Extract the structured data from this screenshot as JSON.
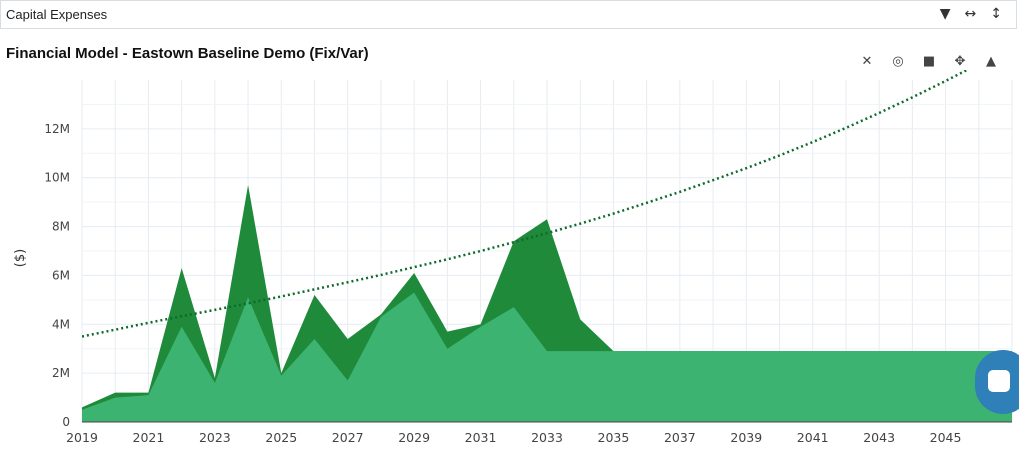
{
  "panel": {
    "title": "Capital Expenses",
    "controls": [
      {
        "name": "collapse-dropdown-icon",
        "glyph": "▼"
      },
      {
        "name": "expand-horizontal-icon",
        "glyph": "↔"
      },
      {
        "name": "expand-vertical-icon",
        "glyph": "↕"
      }
    ]
  },
  "modebar": [
    {
      "name": "toggle-spikelines-icon",
      "glyph": "✕"
    },
    {
      "name": "hover-compare-icon",
      "glyph": "◎"
    },
    {
      "name": "camera-icon",
      "glyph": "■"
    },
    {
      "name": "pan-icon",
      "glyph": "✥"
    },
    {
      "name": "home-icon",
      "glyph": "▲"
    }
  ],
  "colors": {
    "fixed_fill": "#3cb371",
    "variable_fill": "#1f8a3a",
    "trend_line": "#0e6b2b",
    "grid": "#e6ecf2",
    "fab": "#2f7fb8"
  },
  "chart_data": {
    "type": "area",
    "title": "Financial Model - Eastown Baseline Demo (Fix/Var)",
    "ylabel": "($)",
    "xlabel": "",
    "xlim": [
      2019,
      2047
    ],
    "ylim": [
      0,
      14000000
    ],
    "x_ticks": [
      "2019",
      "2021",
      "2023",
      "2025",
      "2027",
      "2029",
      "2031",
      "2033",
      "2035",
      "2037",
      "2039",
      "2041",
      "2043",
      "2045"
    ],
    "y_ticks": [
      {
        "value": 0,
        "label": "0"
      },
      {
        "value": 2000000,
        "label": "2M"
      },
      {
        "value": 4000000,
        "label": "4M"
      },
      {
        "value": 6000000,
        "label": "6M"
      },
      {
        "value": 8000000,
        "label": "8M"
      },
      {
        "value": 10000000,
        "label": "10M"
      },
      {
        "value": 12000000,
        "label": "12M"
      }
    ],
    "grid": true,
    "x": [
      2019,
      2020,
      2021,
      2022,
      2023,
      2024,
      2025,
      2026,
      2027,
      2028,
      2029,
      2030,
      2031,
      2032,
      2033,
      2034,
      2035,
      2036,
      2037,
      2038,
      2039,
      2040,
      2041,
      2042,
      2043,
      2044,
      2045,
      2046,
      2047
    ],
    "series": [
      {
        "style": "stacked-area-bottom",
        "values": [
          500000,
          1000000,
          1100000,
          3900000,
          1600000,
          5100000,
          1900000,
          3400000,
          1700000,
          4300000,
          5300000,
          3000000,
          3900000,
          4700000,
          2900000,
          2900000,
          2900000,
          2900000,
          2900000,
          2900000,
          2900000,
          2900000,
          2900000,
          2900000,
          2900000,
          2900000,
          2900000,
          2900000,
          2900000
        ]
      },
      {
        "style": "stacked-area-top",
        "values": [
          100000,
          200000,
          100000,
          2400000,
          200000,
          4600000,
          100000,
          1800000,
          1700000,
          100000,
          800000,
          700000,
          100000,
          2700000,
          5400000,
          1300000,
          0,
          0,
          0,
          0,
          0,
          0,
          0,
          0,
          0,
          0,
          0,
          0,
          0
        ]
      },
      {
        "style": "dotted-trend-line",
        "values": [
          3500000,
          3780000,
          4060000,
          4330000,
          4590000,
          4860000,
          5140000,
          5430000,
          5720000,
          6020000,
          6340000,
          6660000,
          7000000,
          7360000,
          7730000,
          8120000,
          8530000,
          8970000,
          9420000,
          9900000,
          10390000,
          10910000,
          11460000,
          12040000,
          12650000,
          13290000,
          13960000,
          14660000,
          15400000
        ]
      }
    ]
  }
}
